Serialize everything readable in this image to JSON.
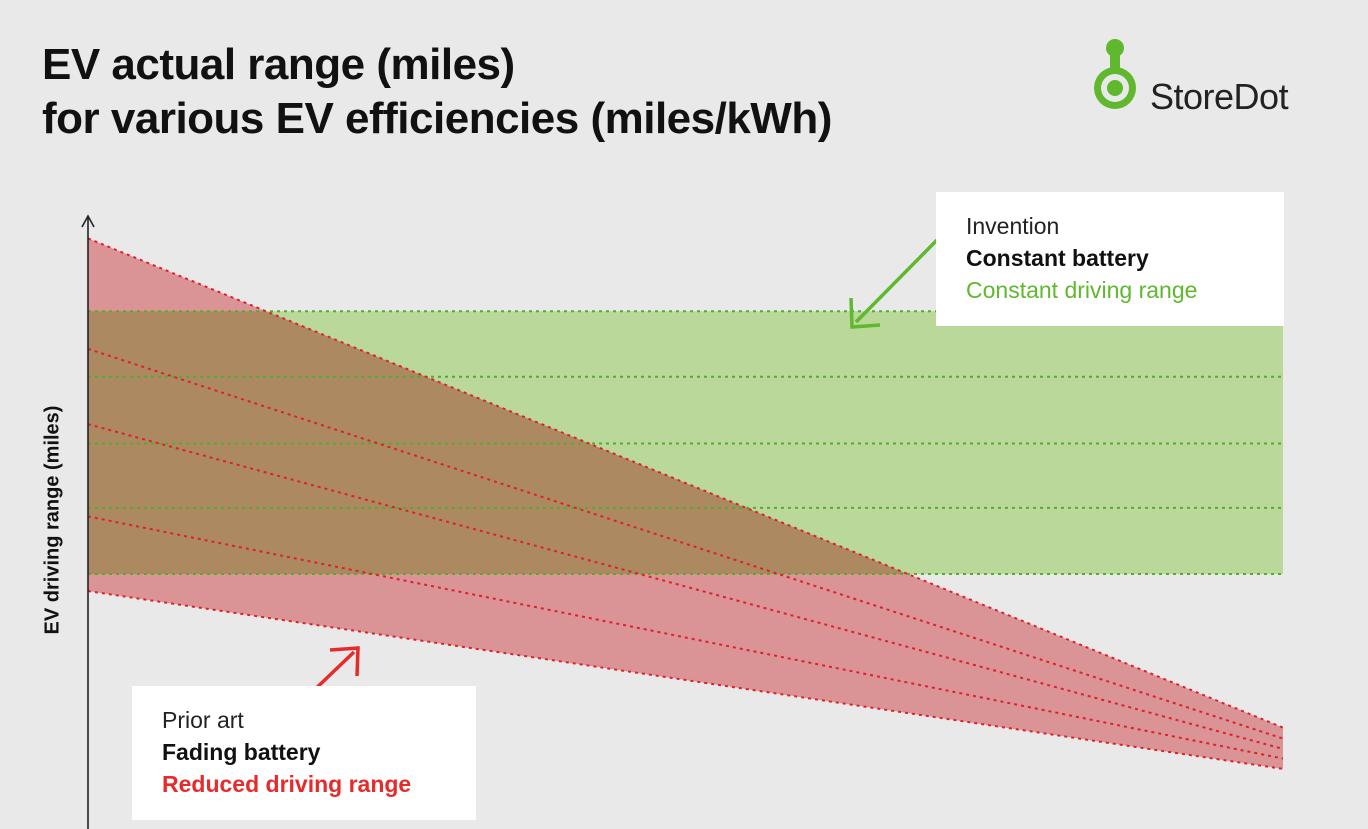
{
  "title": {
    "line1": "EV actual range (miles)",
    "line2": "for various EV efficiencies (miles/kWh)"
  },
  "brand": {
    "name": "StoreDot",
    "icon": "storedot-logo-icon",
    "color": "#5fb82e"
  },
  "callouts": {
    "invention": {
      "line1": "Invention",
      "line2": "Constant battery",
      "line3": "Constant driving range"
    },
    "prior_art": {
      "line1": "Prior art",
      "line2": "Fading battery",
      "line3": "Reduced driving range"
    }
  },
  "colors": {
    "green_band": "#b9d89a",
    "green_line": "#4fae2a",
    "red_band": "#ec8e8e",
    "red_line": "#e01f2a",
    "arrow_green": "#5fb82e",
    "arrow_red": "#e62b2b"
  },
  "chart_data": {
    "type": "line",
    "xlabel": "",
    "ylabel": "EV driving range (miles)",
    "xlim": [
      0,
      100
    ],
    "ylim": [
      0,
      100
    ],
    "grid": false,
    "series": [
      {
        "group": "invention",
        "style": "dotted",
        "x": [
          0,
          100
        ],
        "y": [
          85.3,
          85.3
        ]
      },
      {
        "group": "invention",
        "style": "dotted",
        "x": [
          0,
          100
        ],
        "y": [
          74.5,
          74.5
        ]
      },
      {
        "group": "invention",
        "style": "dotted",
        "x": [
          0,
          100
        ],
        "y": [
          63.5,
          63.5
        ]
      },
      {
        "group": "invention",
        "style": "dotted",
        "x": [
          0,
          100
        ],
        "y": [
          52.9,
          52.9
        ]
      },
      {
        "group": "invention",
        "style": "dotted",
        "x": [
          0,
          100
        ],
        "y": [
          42.0,
          42.0
        ]
      },
      {
        "group": "prior_art",
        "style": "dotted",
        "x": [
          0,
          100
        ],
        "y": [
          97.3,
          16.7
        ]
      },
      {
        "group": "prior_art",
        "style": "dotted",
        "x": [
          0,
          100
        ],
        "y": [
          79.1,
          14.9
        ]
      },
      {
        "group": "prior_art",
        "style": "dotted",
        "x": [
          0,
          100
        ],
        "y": [
          66.7,
          13.2
        ]
      },
      {
        "group": "prior_art",
        "style": "dotted",
        "x": [
          0,
          100
        ],
        "y": [
          51.5,
          11.6
        ]
      },
      {
        "group": "prior_art",
        "style": "dotted",
        "x": [
          0,
          100
        ],
        "y": [
          39.2,
          9.9
        ]
      }
    ],
    "bands": [
      {
        "group": "invention",
        "upper": [
          85.3,
          85.3
        ],
        "lower": [
          42.0,
          42.0
        ]
      },
      {
        "group": "prior_art",
        "upper": [
          97.3,
          16.7
        ],
        "lower": [
          39.2,
          9.9
        ]
      }
    ],
    "annotations": [
      {
        "target": "invention",
        "text_ref": "callouts.invention"
      },
      {
        "target": "prior_art",
        "text_ref": "callouts.prior_art"
      }
    ]
  }
}
